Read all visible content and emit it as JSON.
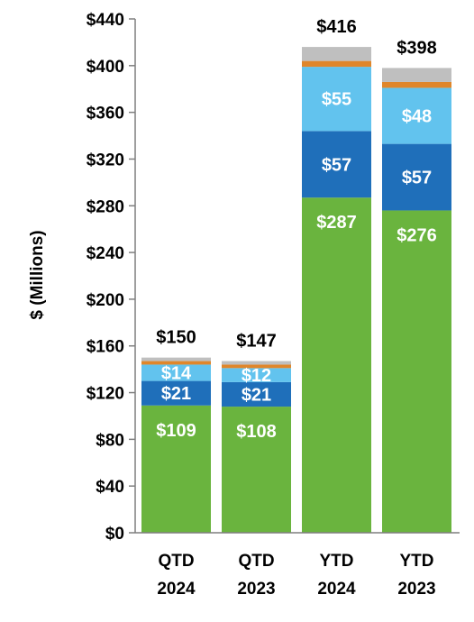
{
  "chart_data": {
    "type": "bar",
    "stacked": true,
    "title": "",
    "xlabel": "",
    "ylabel": "$ (Millions)",
    "ylim": [
      0,
      440
    ],
    "yticks": [
      0,
      40,
      80,
      120,
      160,
      200,
      240,
      280,
      320,
      360,
      400,
      440
    ],
    "ytick_labels": [
      "$0",
      "$40",
      "$80",
      "$120",
      "$160",
      "$200",
      "$240",
      "$280",
      "$320",
      "$360",
      "$400",
      "$440"
    ],
    "categories": [
      [
        "QTD",
        "2024"
      ],
      [
        "QTD",
        "2023"
      ],
      [
        "YTD",
        "2024"
      ],
      [
        "YTD",
        "2023"
      ]
    ],
    "series": [
      {
        "color": "#6ab43e",
        "values": [
          109,
          108,
          287,
          276
        ],
        "labels": [
          "$109",
          "$108",
          "$287",
          "$276"
        ]
      },
      {
        "color": "#1f6fba",
        "values": [
          21,
          21,
          57,
          57
        ],
        "labels": [
          "$21",
          "$21",
          "$57",
          "$57"
        ]
      },
      {
        "color": "#62c3ee",
        "values": [
          14,
          12,
          55,
          48
        ],
        "labels": [
          "$14",
          "$12",
          "$55",
          "$48"
        ]
      },
      {
        "color": "#e0862a",
        "values": [
          3,
          3,
          5,
          5
        ],
        "labels": []
      },
      {
        "color": "#bfbfbf",
        "values": [
          3,
          3,
          12,
          12
        ],
        "labels": []
      }
    ],
    "totals": [
      "$150",
      "$147",
      "$416",
      "$398"
    ],
    "grid": false,
    "legend": "none"
  }
}
